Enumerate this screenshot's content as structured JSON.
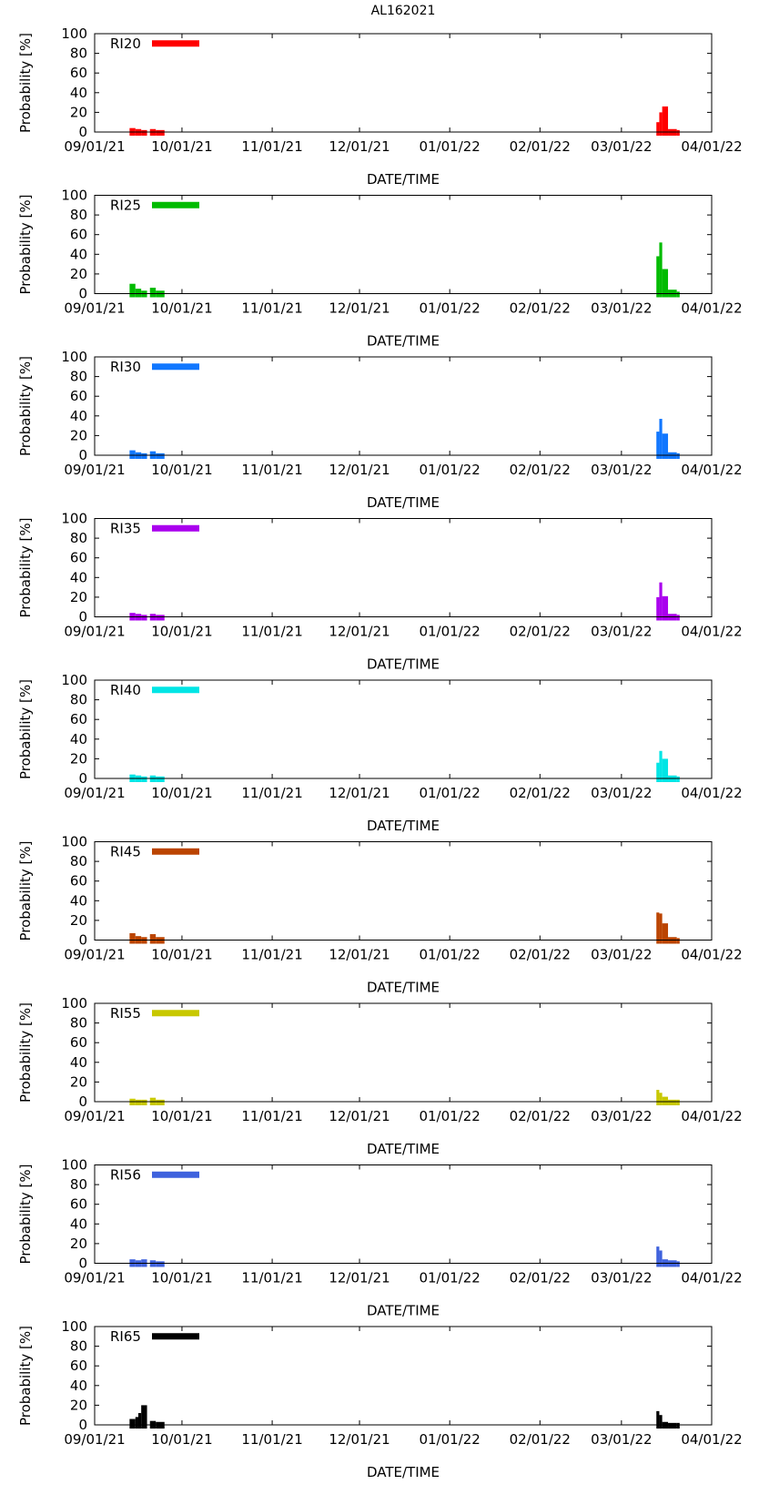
{
  "chart_data": {
    "title": "AL162021",
    "type": "bar",
    "xlabel": "DATE/TIME",
    "ylabel": "Probability [%]",
    "ylim": [
      0,
      100
    ],
    "yticks": [
      "0",
      "20",
      "40",
      "60",
      "80",
      "100"
    ],
    "xticks": [
      "09/01/21",
      "10/01/21",
      "11/01/21",
      "12/01/21",
      "01/01/22",
      "02/01/22",
      "03/01/22",
      "04/01/22"
    ],
    "xtick_days": [
      0,
      30,
      61,
      91,
      122,
      153,
      181,
      212
    ],
    "xlim_days": [
      0,
      212
    ],
    "panels": [
      {
        "name": "RI20",
        "color": "#ff0000",
        "bars": [
          {
            "start": 12,
            "end": 14,
            "value": 4
          },
          {
            "start": 14,
            "end": 16,
            "value": 3
          },
          {
            "start": 16,
            "end": 18,
            "value": 2
          },
          {
            "start": 19,
            "end": 21,
            "value": 3
          },
          {
            "start": 21,
            "end": 24,
            "value": 2
          },
          {
            "start": 193,
            "end": 194,
            "value": 10
          },
          {
            "start": 194,
            "end": 195,
            "value": 20
          },
          {
            "start": 195,
            "end": 197,
            "value": 26
          },
          {
            "start": 197,
            "end": 200,
            "value": 3
          },
          {
            "start": 200,
            "end": 201,
            "value": 2
          }
        ]
      },
      {
        "name": "RI25",
        "color": "#00bb00",
        "bars": [
          {
            "start": 12,
            "end": 14,
            "value": 10
          },
          {
            "start": 14,
            "end": 16,
            "value": 5
          },
          {
            "start": 16,
            "end": 18,
            "value": 3
          },
          {
            "start": 19,
            "end": 21,
            "value": 6
          },
          {
            "start": 21,
            "end": 24,
            "value": 3
          },
          {
            "start": 193,
            "end": 194,
            "value": 38
          },
          {
            "start": 194,
            "end": 195,
            "value": 52
          },
          {
            "start": 195,
            "end": 197,
            "value": 25
          },
          {
            "start": 197,
            "end": 200,
            "value": 4
          },
          {
            "start": 200,
            "end": 201,
            "value": 2
          }
        ]
      },
      {
        "name": "RI30",
        "color": "#1177ff",
        "bars": [
          {
            "start": 12,
            "end": 14,
            "value": 5
          },
          {
            "start": 14,
            "end": 16,
            "value": 3
          },
          {
            "start": 16,
            "end": 18,
            "value": 2
          },
          {
            "start": 19,
            "end": 21,
            "value": 4
          },
          {
            "start": 21,
            "end": 24,
            "value": 2
          },
          {
            "start": 193,
            "end": 194,
            "value": 24
          },
          {
            "start": 194,
            "end": 195,
            "value": 37
          },
          {
            "start": 195,
            "end": 197,
            "value": 22
          },
          {
            "start": 197,
            "end": 200,
            "value": 3
          },
          {
            "start": 200,
            "end": 201,
            "value": 2
          }
        ]
      },
      {
        "name": "RI35",
        "color": "#aa00ee",
        "bars": [
          {
            "start": 12,
            "end": 14,
            "value": 4
          },
          {
            "start": 14,
            "end": 16,
            "value": 3
          },
          {
            "start": 16,
            "end": 18,
            "value": 2
          },
          {
            "start": 19,
            "end": 21,
            "value": 3
          },
          {
            "start": 21,
            "end": 24,
            "value": 2
          },
          {
            "start": 193,
            "end": 194,
            "value": 20
          },
          {
            "start": 194,
            "end": 195,
            "value": 35
          },
          {
            "start": 195,
            "end": 197,
            "value": 21
          },
          {
            "start": 197,
            "end": 200,
            "value": 3
          },
          {
            "start": 200,
            "end": 201,
            "value": 2
          }
        ]
      },
      {
        "name": "RI40",
        "color": "#00e5e5",
        "bars": [
          {
            "start": 12,
            "end": 14,
            "value": 4
          },
          {
            "start": 14,
            "end": 16,
            "value": 3
          },
          {
            "start": 16,
            "end": 18,
            "value": 2
          },
          {
            "start": 19,
            "end": 21,
            "value": 3
          },
          {
            "start": 21,
            "end": 24,
            "value": 2
          },
          {
            "start": 193,
            "end": 194,
            "value": 16
          },
          {
            "start": 194,
            "end": 195,
            "value": 28
          },
          {
            "start": 195,
            "end": 197,
            "value": 20
          },
          {
            "start": 197,
            "end": 200,
            "value": 3
          },
          {
            "start": 200,
            "end": 201,
            "value": 2
          }
        ]
      },
      {
        "name": "RI45",
        "color": "#bb4400",
        "bars": [
          {
            "start": 12,
            "end": 14,
            "value": 7
          },
          {
            "start": 14,
            "end": 16,
            "value": 4
          },
          {
            "start": 16,
            "end": 18,
            "value": 3
          },
          {
            "start": 19,
            "end": 21,
            "value": 6
          },
          {
            "start": 21,
            "end": 24,
            "value": 3
          },
          {
            "start": 193,
            "end": 194,
            "value": 28
          },
          {
            "start": 194,
            "end": 195,
            "value": 27
          },
          {
            "start": 195,
            "end": 197,
            "value": 17
          },
          {
            "start": 197,
            "end": 200,
            "value": 3
          },
          {
            "start": 200,
            "end": 201,
            "value": 2
          }
        ]
      },
      {
        "name": "RI55",
        "color": "#c8c800",
        "bars": [
          {
            "start": 12,
            "end": 14,
            "value": 3
          },
          {
            "start": 14,
            "end": 16,
            "value": 2
          },
          {
            "start": 16,
            "end": 18,
            "value": 2
          },
          {
            "start": 19,
            "end": 21,
            "value": 4
          },
          {
            "start": 21,
            "end": 24,
            "value": 2
          },
          {
            "start": 193,
            "end": 194,
            "value": 12
          },
          {
            "start": 194,
            "end": 195,
            "value": 9
          },
          {
            "start": 195,
            "end": 197,
            "value": 5
          },
          {
            "start": 197,
            "end": 200,
            "value": 2
          },
          {
            "start": 200,
            "end": 201,
            "value": 2
          }
        ]
      },
      {
        "name": "RI56",
        "color": "#3f62dd",
        "bars": [
          {
            "start": 12,
            "end": 14,
            "value": 4
          },
          {
            "start": 14,
            "end": 16,
            "value": 3
          },
          {
            "start": 16,
            "end": 18,
            "value": 4
          },
          {
            "start": 19,
            "end": 21,
            "value": 3
          },
          {
            "start": 21,
            "end": 24,
            "value": 2
          },
          {
            "start": 193,
            "end": 194,
            "value": 17
          },
          {
            "start": 194,
            "end": 195,
            "value": 13
          },
          {
            "start": 195,
            "end": 197,
            "value": 4
          },
          {
            "start": 197,
            "end": 200,
            "value": 3
          },
          {
            "start": 200,
            "end": 201,
            "value": 2
          }
        ]
      },
      {
        "name": "RI65",
        "color": "#000000",
        "bars": [
          {
            "start": 12,
            "end": 14,
            "value": 6
          },
          {
            "start": 14,
            "end": 15,
            "value": 8
          },
          {
            "start": 15,
            "end": 16,
            "value": 12
          },
          {
            "start": 16,
            "end": 18,
            "value": 20
          },
          {
            "start": 19,
            "end": 21,
            "value": 4
          },
          {
            "start": 21,
            "end": 24,
            "value": 3
          },
          {
            "start": 193,
            "end": 194,
            "value": 14
          },
          {
            "start": 194,
            "end": 195,
            "value": 10
          },
          {
            "start": 195,
            "end": 197,
            "value": 3
          },
          {
            "start": 197,
            "end": 200,
            "value": 2
          },
          {
            "start": 200,
            "end": 201,
            "value": 2
          }
        ]
      }
    ]
  }
}
